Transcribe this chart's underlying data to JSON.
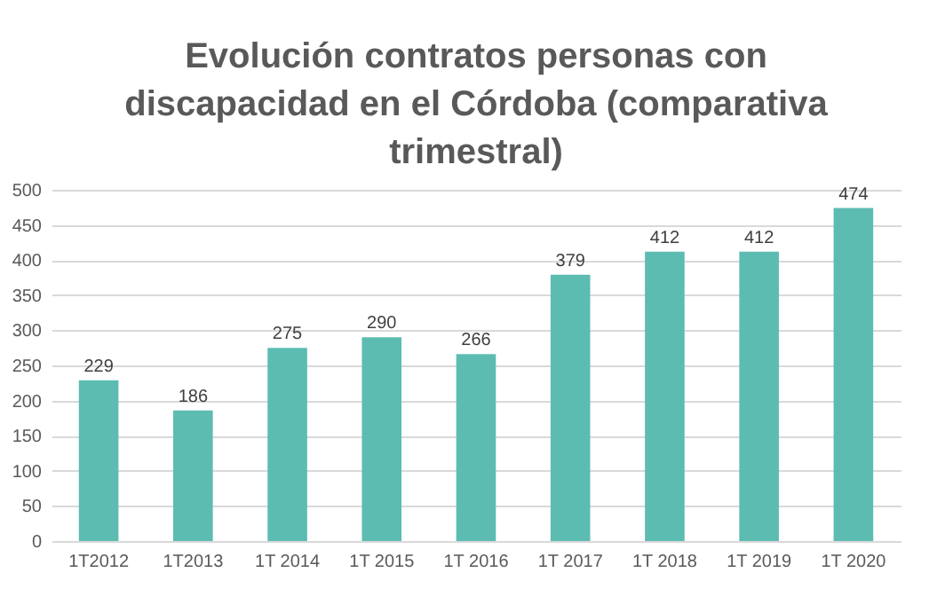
{
  "chart_data": {
    "type": "bar",
    "title": "Evolución contratos personas con discapacidad en el Córdoba (comparativa trimestral)",
    "categories": [
      "1T2012",
      "1T2013",
      "1T 2014",
      "1T 2015",
      "1T 2016",
      "1T 2017",
      "1T 2018",
      "1T 2019",
      "1T 2020"
    ],
    "values": [
      229,
      186,
      275,
      290,
      266,
      379,
      412,
      412,
      474
    ],
    "color": "#5cbcb2",
    "ylim": [
      0,
      500
    ],
    "yticks": [
      0,
      50,
      100,
      150,
      200,
      250,
      300,
      350,
      400,
      450,
      500
    ],
    "grid": "y",
    "data_labels": true
  }
}
